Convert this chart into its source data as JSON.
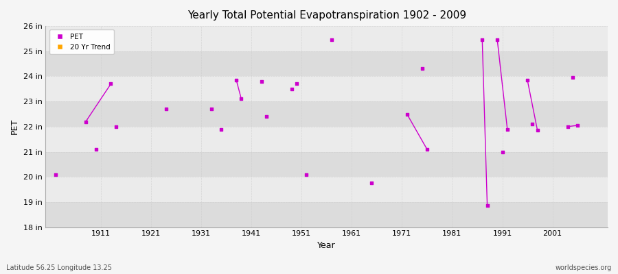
{
  "title": "Yearly Total Potential Evapotranspiration 1902 - 2009",
  "xlabel": "Year",
  "ylabel": "PET",
  "lat_lon_label": "Latitude 56.25 Longitude 13.25",
  "watermark": "worldspecies.org",
  "ylim": [
    18,
    26
  ],
  "xlim": [
    1900,
    2012
  ],
  "ytick_labels": [
    "18 in",
    "19 in",
    "20 in",
    "21 in",
    "22 in",
    "23 in",
    "24 in",
    "25 in",
    "26 in"
  ],
  "ytick_values": [
    18,
    19,
    20,
    21,
    22,
    23,
    24,
    25,
    26
  ],
  "xtick_values": [
    1911,
    1921,
    1931,
    1941,
    1951,
    1961,
    1971,
    1981,
    1991,
    2001
  ],
  "pet_points": [
    [
      1902,
      20.1
    ],
    [
      1908,
      22.2
    ],
    [
      1910,
      21.1
    ],
    [
      1913,
      23.7
    ],
    [
      1914,
      22.0
    ],
    [
      1924,
      22.7
    ],
    [
      1933,
      22.7
    ],
    [
      1935,
      21.9
    ],
    [
      1938,
      23.85
    ],
    [
      1939,
      23.1
    ],
    [
      1943,
      23.8
    ],
    [
      1944,
      22.4
    ],
    [
      1949,
      23.5
    ],
    [
      1950,
      23.7
    ],
    [
      1952,
      20.1
    ],
    [
      1957,
      25.45
    ],
    [
      1965,
      19.75
    ],
    [
      1972,
      22.5
    ],
    [
      1975,
      24.3
    ],
    [
      1976,
      21.1
    ],
    [
      1987,
      25.45
    ],
    [
      1988,
      18.85
    ],
    [
      1990,
      25.45
    ],
    [
      1991,
      21.0
    ],
    [
      1992,
      21.9
    ],
    [
      1996,
      23.85
    ],
    [
      1997,
      22.1
    ],
    [
      1998,
      21.85
    ],
    [
      2004,
      22.0
    ],
    [
      2005,
      23.95
    ],
    [
      2006,
      22.05
    ]
  ],
  "trend_segments": [
    [
      [
        1908,
        22.2
      ],
      [
        1913,
        23.7
      ]
    ],
    [
      [
        1938,
        23.85
      ],
      [
        1939,
        23.1
      ]
    ],
    [
      [
        1972,
        22.5
      ],
      [
        1976,
        21.1
      ]
    ],
    [
      [
        1987,
        25.45
      ],
      [
        1988,
        18.85
      ]
    ],
    [
      [
        1990,
        25.45
      ],
      [
        1992,
        21.9
      ]
    ],
    [
      [
        1996,
        23.85
      ],
      [
        1998,
        21.85
      ]
    ],
    [
      [
        2004,
        22.0
      ],
      [
        2006,
        22.05
      ]
    ]
  ],
  "pet_color": "#CC00CC",
  "trend_color": "#CC00CC",
  "bg_color": "#F5F5F5",
  "plot_bg_light": "#EBEBEB",
  "plot_bg_dark": "#DCDCDC",
  "grid_color": "#CCCCCC",
  "spine_color": "#AAAAAA"
}
